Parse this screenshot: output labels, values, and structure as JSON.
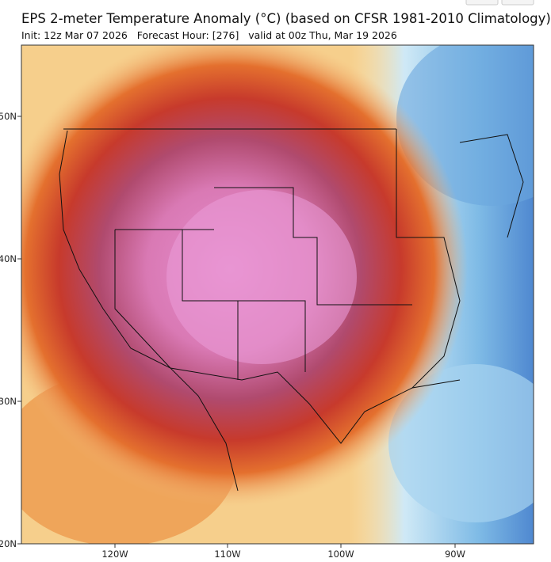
{
  "header": {
    "title": "EPS 2-meter Temperature Anomaly (°C) (based on CFSR 1981-2010 Climatology)",
    "subtitle": "Init: 12z Mar 07 2026   Forecast Hour: [276]   valid at 00z Thu, Mar 19 2026"
  },
  "map": {
    "lat_labels": [
      "50N",
      "40N",
      "30N",
      "20N"
    ],
    "lon_labels": [
      "120W",
      "110W",
      "100W",
      "90W"
    ]
  }
}
